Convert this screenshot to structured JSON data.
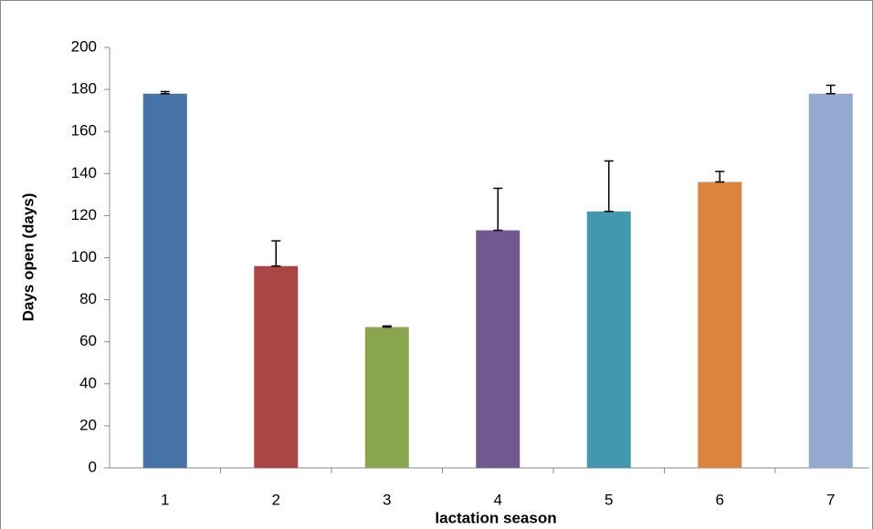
{
  "chart_data": {
    "type": "bar",
    "x_label": "lactation season",
    "y_label": "Days open (days)",
    "categories": [
      "1",
      "2",
      "3",
      "4",
      "5",
      "6",
      "7"
    ],
    "values": [
      178,
      96,
      67,
      113,
      122,
      136,
      178
    ],
    "errors": [
      1,
      12,
      0.5,
      20,
      24,
      5,
      4
    ],
    "colors": [
      "#4572a7",
      "#aa4643",
      "#89a54e",
      "#71588f",
      "#4198af",
      "#db843d",
      "#93a9cf"
    ],
    "ylim": [
      0,
      200
    ],
    "yticks": [
      0,
      20,
      40,
      60,
      80,
      100,
      120,
      140,
      160,
      180,
      200
    ],
    "grid": false
  }
}
